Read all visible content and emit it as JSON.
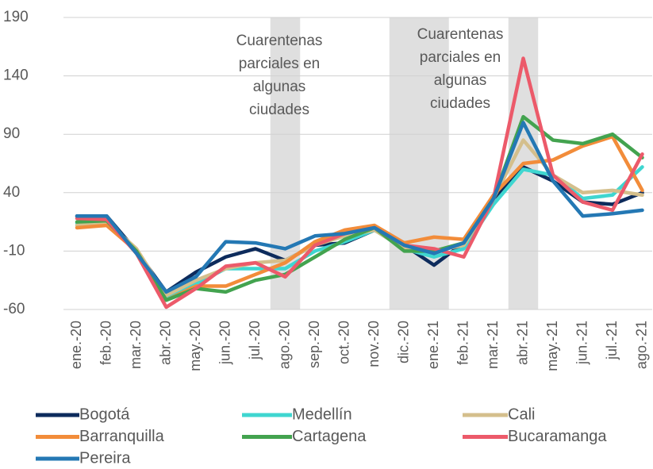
{
  "chart_data": {
    "type": "line",
    "categories": [
      "ene.-20",
      "feb.-20",
      "mar.-20",
      "abr.-20",
      "may.-20",
      "jun.-20",
      "jul.-20",
      "ago.-20",
      "sep.-20",
      "oct.-20",
      "nov.-20",
      "dic.-20",
      "ene.-21",
      "feb.-21",
      "mar.-21",
      "abr.-21",
      "may.-21",
      "jun.-21",
      "jul.-21",
      "ago.-21"
    ],
    "series": [
      {
        "name": "Bogotá",
        "color": "#0d2b5c",
        "values": [
          20,
          20,
          -10,
          -45,
          -28,
          -15,
          -8,
          -18,
          -5,
          -3,
          8,
          -5,
          -22,
          -3,
          35,
          62,
          50,
          32,
          30,
          40
        ]
      },
      {
        "name": "Medellín",
        "color": "#3fd6d0",
        "values": [
          14,
          16,
          -10,
          -50,
          -38,
          -25,
          -25,
          -25,
          -10,
          -2,
          8,
          -8,
          -15,
          -8,
          30,
          60,
          55,
          35,
          38,
          62
        ]
      },
      {
        "name": "Cali",
        "color": "#d4bf8c",
        "values": [
          12,
          15,
          -8,
          -48,
          -35,
          -25,
          -20,
          -18,
          -5,
          3,
          8,
          -8,
          -10,
          -5,
          35,
          85,
          55,
          40,
          42,
          38
        ]
      },
      {
        "name": "Barranquilla",
        "color": "#f28c3a",
        "values": [
          10,
          12,
          -10,
          -52,
          -40,
          -40,
          -30,
          -20,
          -2,
          8,
          12,
          -3,
          2,
          0,
          38,
          65,
          68,
          80,
          88,
          42
        ]
      },
      {
        "name": "Cartagena",
        "color": "#43a34f",
        "values": [
          15,
          16,
          -10,
          -52,
          -42,
          -45,
          -35,
          -30,
          -15,
          0,
          10,
          -10,
          -10,
          -3,
          35,
          105,
          85,
          82,
          90,
          70
        ]
      },
      {
        "name": "Bucaramanga",
        "color": "#ec5a6a",
        "values": [
          18,
          17,
          -12,
          -58,
          -42,
          -23,
          -20,
          -32,
          -5,
          5,
          10,
          -5,
          -8,
          -15,
          35,
          155,
          55,
          32,
          25,
          73
        ]
      },
      {
        "name": "Pereira",
        "color": "#2478b4",
        "values": [
          20,
          20,
          -12,
          -45,
          -32,
          -2,
          -3,
          -8,
          3,
          5,
          10,
          -5,
          -12,
          -3,
          35,
          100,
          50,
          20,
          22,
          25
        ]
      }
    ],
    "shaded": [
      {
        "from": "ago.-20",
        "to": "ago.-20"
      },
      {
        "from": "dic.-20",
        "to": "ene.-21"
      },
      {
        "from": "abr.-21",
        "to": "abr.-21"
      }
    ],
    "annotations": [
      {
        "lines": [
          "Cuarentenas",
          "parciales en",
          "algunas",
          "ciudades"
        ]
      },
      {
        "lines": [
          "Cuarentenas",
          "parciales en",
          "algunas",
          "ciudades"
        ]
      }
    ],
    "ylim": [
      -60,
      190
    ],
    "yticks": [
      -60,
      -10,
      40,
      90,
      140,
      190
    ],
    "grid": true
  }
}
